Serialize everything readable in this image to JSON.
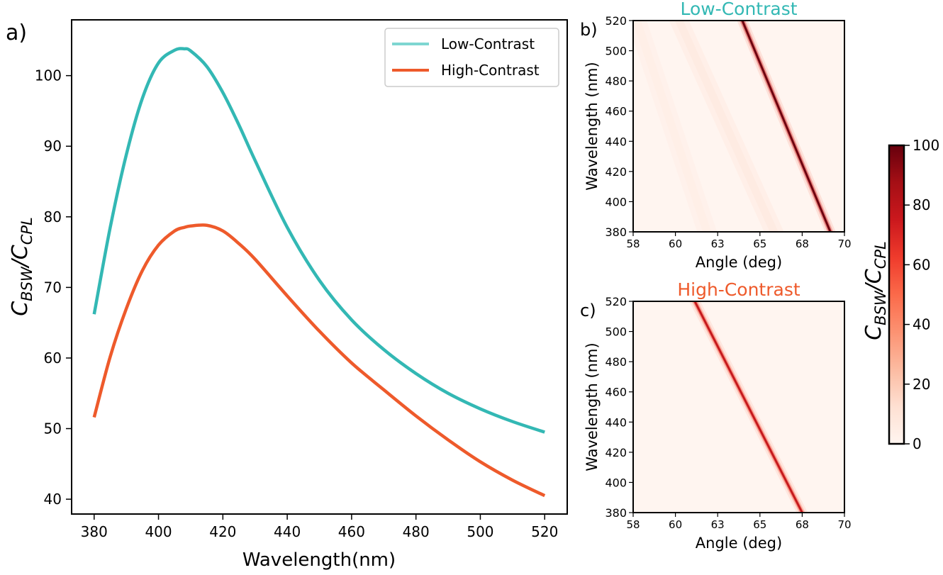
{
  "chart_data": [
    {
      "panel_label": "a)",
      "type": "line",
      "title": "",
      "xlabel": "Wavelength(nm)",
      "ylabel_main": "C",
      "ylabel_sub1": "BSW",
      "ylabel_sep": "/C",
      "ylabel_sub2": "CPL",
      "xlim": [
        373,
        527
      ],
      "ylim": [
        37.9,
        107.9
      ],
      "xticks": [
        380,
        400,
        420,
        440,
        460,
        480,
        500,
        520
      ],
      "yticks": [
        40,
        50,
        60,
        70,
        80,
        90,
        100
      ],
      "legend_position": "top-right",
      "x": [
        380,
        385,
        390,
        395,
        400,
        405,
        408,
        410,
        415,
        420,
        425,
        430,
        440,
        450,
        460,
        470,
        480,
        490,
        500,
        510,
        520
      ],
      "series": [
        {
          "name": "Low-Contrast",
          "color": "#33b8b4",
          "legend_color": "#7ed6d1",
          "values": [
            66.2,
            78.5,
            88.8,
            96.8,
            101.8,
            103.6,
            103.8,
            103.5,
            101.3,
            97.6,
            93.0,
            88.0,
            78.5,
            71.0,
            65.4,
            61.2,
            57.8,
            55.0,
            52.8,
            51.0,
            49.5
          ]
        },
        {
          "name": "High-Contrast",
          "color": "#ee5a2b",
          "legend_color": "#ee5a2b",
          "values": [
            51.6,
            60.2,
            67.0,
            72.4,
            76.0,
            78.0,
            78.5,
            78.7,
            78.8,
            78.0,
            76.2,
            74.0,
            68.8,
            63.8,
            59.3,
            55.5,
            51.8,
            48.4,
            45.3,
            42.7,
            40.5
          ]
        }
      ]
    },
    {
      "panel_label": "b)",
      "type": "heatmap",
      "title": "Low-Contrast",
      "title_color": "#33b8b4",
      "xlabel": "Angle (deg)",
      "ylabel": "Wavelength (nm)",
      "xlim": [
        58,
        70
      ],
      "ylim": [
        380,
        520
      ],
      "xticks": [
        "58",
        "60",
        "63",
        "65",
        "68",
        "70"
      ],
      "yticks": [
        380,
        400,
        420,
        440,
        460,
        480,
        500,
        520
      ],
      "ridge": {
        "angle_at_520": 64.2,
        "angle_at_380": 69.2,
        "peak_value": 100
      },
      "faint_ridges": [
        {
          "angle_at_520": 60.6,
          "angle_at_380": 66.0,
          "peak_value": 8
        },
        {
          "angle_at_520": 58.2,
          "angle_at_380": 62.2,
          "peak_value": 5
        }
      ]
    },
    {
      "panel_label": "c)",
      "type": "heatmap",
      "title": "High-Contrast",
      "title_color": "#ee5a2b",
      "xlabel": "Angle (deg)",
      "ylabel": "Wavelength (nm)",
      "xlim": [
        58,
        70
      ],
      "ylim": [
        380,
        520
      ],
      "xticks": [
        "58",
        "60",
        "63",
        "65",
        "68",
        "70"
      ],
      "yticks": [
        380,
        400,
        420,
        440,
        460,
        480,
        500,
        520
      ],
      "ridge": {
        "angle_at_520": 61.5,
        "angle_at_380": 67.6,
        "peak_value": 78
      },
      "faint_ridges": []
    },
    {
      "type": "colorbar",
      "label_main": "C",
      "label_sub1": "BSW",
      "label_sep": "/C",
      "label_sub2": "CPL",
      "range": [
        0,
        100
      ],
      "ticks": [
        0,
        20,
        40,
        60,
        80,
        100
      ],
      "colormap": "Reds"
    }
  ]
}
